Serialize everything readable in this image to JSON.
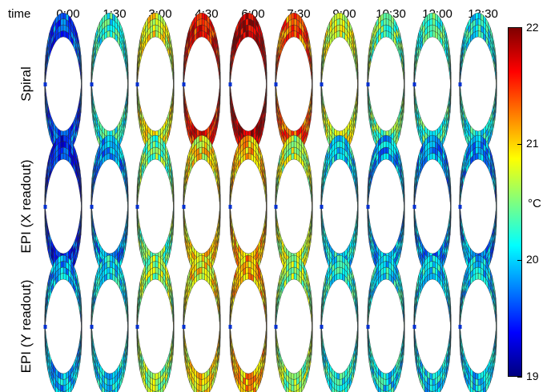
{
  "header": {
    "time_label": "time"
  },
  "times": [
    "0:00",
    "1:30",
    "3:00",
    "4:30",
    "6:00",
    "7:30",
    "9:00",
    "10:30",
    "12:00",
    "13:30"
  ],
  "rows": [
    {
      "label": "Spiral",
      "heat": [
        0.2,
        0.4,
        0.62,
        0.86,
        0.95,
        0.78,
        0.58,
        0.48,
        0.43,
        0.38
      ]
    },
    {
      "label": "EPI (X readout)",
      "heat": [
        0.15,
        0.28,
        0.48,
        0.63,
        0.68,
        0.56,
        0.36,
        0.3,
        0.28,
        0.27
      ]
    },
    {
      "label": "EPI (Y readout)",
      "heat": [
        0.3,
        0.36,
        0.53,
        0.63,
        0.7,
        0.52,
        0.4,
        0.36,
        0.35,
        0.34
      ]
    }
  ],
  "colorbar": {
    "min": 19,
    "max": 22,
    "ticks": [
      19,
      20,
      21,
      22
    ],
    "tick_labels": [
      "19",
      "20",
      "21",
      "22"
    ],
    "unit": "°C",
    "colormap": "jet",
    "stops": [
      "#00007f",
      "#0000ff",
      "#007fff",
      "#00ffff",
      "#7fff7f",
      "#ffff00",
      "#ff7f00",
      "#ff0000",
      "#7f0000"
    ]
  }
}
